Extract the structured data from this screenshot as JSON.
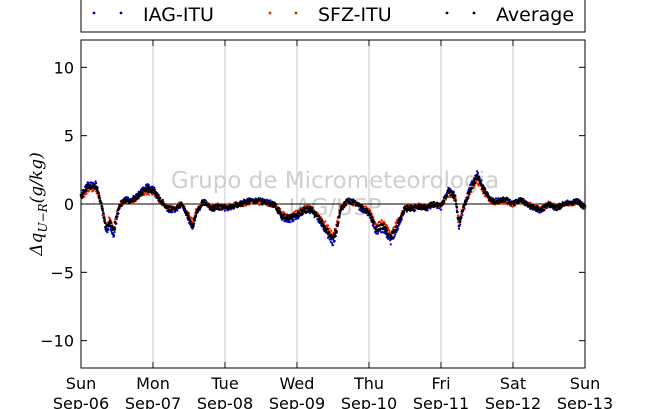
{
  "chart_data": {
    "type": "scatter",
    "ylabel": "Δq_{U−R}(g/kg)",
    "ylabel_parts": {
      "delta": "Δq",
      "sub": "U−R",
      "rest": "(g/kg)"
    },
    "watermark": [
      "Grupo de Micrometeorologia",
      "IAG/USP"
    ],
    "ylim": [
      -12,
      12
    ],
    "xlim": [
      0,
      7
    ],
    "yticks": [
      10,
      5,
      0,
      -5,
      -10
    ],
    "ytick_labels": [
      "10",
      "5",
      "0",
      "−5",
      "−10"
    ],
    "xticks": [
      0,
      1,
      2,
      3,
      4,
      5,
      6,
      7
    ],
    "xtick_labels": [
      [
        "Sun",
        "Sep-06"
      ],
      [
        "Mon",
        "Sep-07"
      ],
      [
        "Tue",
        "Sep-08"
      ],
      [
        "Wed",
        "Sep-09"
      ],
      [
        "Thu",
        "Sep-10"
      ],
      [
        "Fri",
        "Sep-11"
      ],
      [
        "Sat",
        "Sep-12"
      ],
      [
        "Sun",
        "Sep-13"
      ]
    ],
    "x_unit": "days since Sun Sep-06 00:00",
    "grid": "vertical",
    "zero_line": true,
    "legend_position": "top, above plot",
    "series": [
      {
        "name": "IAG-ITU",
        "color": "#0000cc",
        "offset": 0.25
      },
      {
        "name": "SFZ-ITU",
        "color": "#ee2200",
        "offset": -0.25
      },
      {
        "name": "Average",
        "color": "#000000",
        "offset": 0
      }
    ],
    "average_profile": [
      [
        0.0,
        0.5
      ],
      [
        0.05,
        0.9
      ],
      [
        0.1,
        1.3
      ],
      [
        0.15,
        1.2
      ],
      [
        0.2,
        1.3
      ],
      [
        0.25,
        0.7
      ],
      [
        0.3,
        -0.5
      ],
      [
        0.35,
        -1.8
      ],
      [
        0.4,
        -1.3
      ],
      [
        0.45,
        -2.1
      ],
      [
        0.5,
        -0.8
      ],
      [
        0.55,
        0.0
      ],
      [
        0.6,
        0.3
      ],
      [
        0.7,
        0.2
      ],
      [
        0.8,
        0.6
      ],
      [
        0.9,
        1.1
      ],
      [
        1.0,
        1.0
      ],
      [
        1.1,
        0.3
      ],
      [
        1.2,
        -0.3
      ],
      [
        1.3,
        -0.4
      ],
      [
        1.4,
        0.0
      ],
      [
        1.5,
        -1.0
      ],
      [
        1.55,
        -1.6
      ],
      [
        1.6,
        -0.6
      ],
      [
        1.7,
        0.2
      ],
      [
        1.8,
        -0.3
      ],
      [
        1.9,
        -0.2
      ],
      [
        2.0,
        -0.3
      ],
      [
        2.2,
        0.0
      ],
      [
        2.35,
        0.2
      ],
      [
        2.45,
        0.2
      ],
      [
        2.6,
        0.1
      ],
      [
        2.7,
        -0.1
      ],
      [
        2.8,
        -0.9
      ],
      [
        2.9,
        -1.0
      ],
      [
        3.0,
        -0.8
      ],
      [
        3.1,
        -0.4
      ],
      [
        3.2,
        -0.4
      ],
      [
        3.3,
        -1.0
      ],
      [
        3.4,
        -1.8
      ],
      [
        3.5,
        -2.6
      ],
      [
        3.55,
        -1.8
      ],
      [
        3.6,
        -0.4
      ],
      [
        3.7,
        0.2
      ],
      [
        3.8,
        0.1
      ],
      [
        3.9,
        -0.3
      ],
      [
        4.0,
        -0.6
      ],
      [
        4.1,
        -1.8
      ],
      [
        4.2,
        -1.6
      ],
      [
        4.3,
        -2.5
      ],
      [
        4.4,
        -1.5
      ],
      [
        4.5,
        -0.3
      ],
      [
        4.6,
        -0.3
      ],
      [
        4.7,
        -0.2
      ],
      [
        4.8,
        -0.3
      ],
      [
        4.9,
        0.0
      ],
      [
        5.0,
        -0.2
      ],
      [
        5.1,
        0.9
      ],
      [
        5.2,
        0.5
      ],
      [
        5.25,
        -1.5
      ],
      [
        5.3,
        -0.5
      ],
      [
        5.4,
        1.0
      ],
      [
        5.5,
        2.0
      ],
      [
        5.55,
        1.5
      ],
      [
        5.6,
        1.0
      ],
      [
        5.7,
        0.2
      ],
      [
        5.8,
        0.2
      ],
      [
        5.9,
        0.3
      ],
      [
        6.0,
        0.0
      ],
      [
        6.1,
        0.3
      ],
      [
        6.2,
        0.0
      ],
      [
        6.3,
        -0.3
      ],
      [
        6.4,
        -0.4
      ],
      [
        6.5,
        0.0
      ],
      [
        6.6,
        -0.3
      ],
      [
        6.7,
        0.0
      ],
      [
        6.8,
        0.1
      ],
      [
        6.9,
        0.2
      ],
      [
        7.0,
        -0.3
      ]
    ]
  }
}
